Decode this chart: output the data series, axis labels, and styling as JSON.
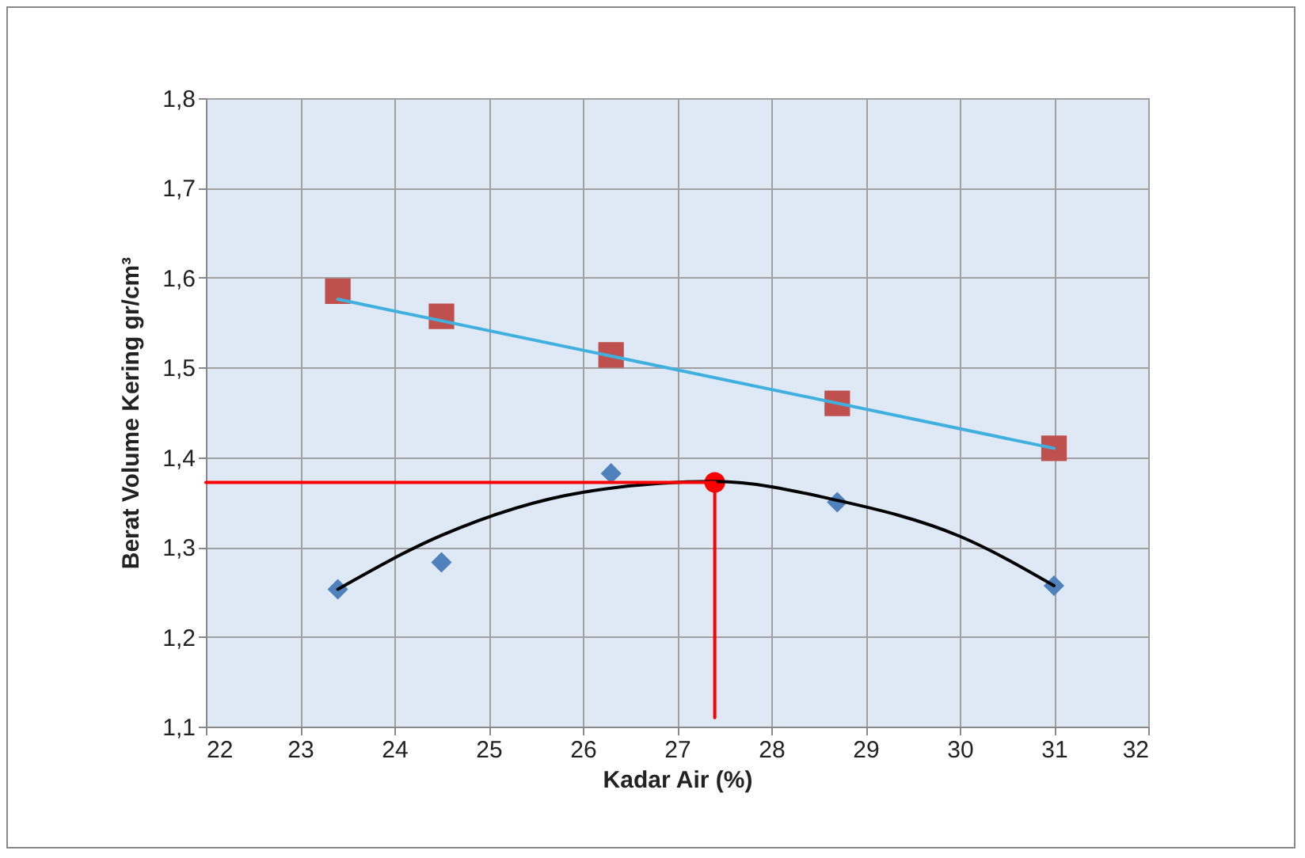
{
  "chart_data": {
    "type": "scatter",
    "xlabel": "Kadar Air (%)",
    "ylabel": "Berat Volume Kering gr/cm³",
    "xlim": [
      22,
      32
    ],
    "xticks": [
      22,
      23,
      24,
      25,
      26,
      27,
      28,
      29,
      30,
      31,
      32
    ],
    "ylim": [
      1.1,
      1.8
    ],
    "yticks": [
      {
        "value": 1.1,
        "label": "1,1"
      },
      {
        "value": 1.2,
        "label": "1,2"
      },
      {
        "value": 1.3,
        "label": "1,3"
      },
      {
        "value": 1.4,
        "label": "1,4"
      },
      {
        "value": 1.5,
        "label": "1,5"
      },
      {
        "value": 1.6,
        "label": "1,6"
      },
      {
        "value": 1.7,
        "label": "1,7"
      },
      {
        "value": 1.8,
        "label": "1,8"
      }
    ],
    "grid": true,
    "series": [
      {
        "type": "line",
        "color": "#3fb0e0",
        "x": [
          23.4,
          31.0
        ],
        "values": [
          1.576,
          1.41
        ]
      },
      {
        "type": "line",
        "color": "#000000",
        "x": [
          23.4,
          24.5,
          26.0,
          27.4,
          28.7,
          30.0,
          31.0
        ],
        "values": [
          1.253,
          1.313,
          1.361,
          1.373,
          1.352,
          1.312,
          1.257
        ]
      },
      {
        "type": "line",
        "color": "#ff0000",
        "x": [
          27.4,
          22
        ],
        "values": [
          1.372,
          1.372
        ]
      },
      {
        "type": "line",
        "color": "#ff0000",
        "x": [
          27.4,
          27.4
        ],
        "values": [
          1.372,
          1.11
        ]
      },
      {
        "marker": "diamond",
        "color": "#4f81bd",
        "x": [
          23.4,
          24.5,
          26.3,
          28.7,
          31.0
        ],
        "values": [
          1.253,
          1.283,
          1.382,
          1.35,
          1.257
        ]
      },
      {
        "marker": "square",
        "color": "#c0504d",
        "x": [
          23.4,
          24.5,
          26.3,
          28.7,
          31.0
        ],
        "values": [
          1.585,
          1.557,
          1.514,
          1.46,
          1.41
        ]
      },
      {
        "marker": "circle",
        "color": "#ff0000",
        "x": [
          27.4
        ],
        "values": [
          1.372
        ]
      }
    ]
  }
}
